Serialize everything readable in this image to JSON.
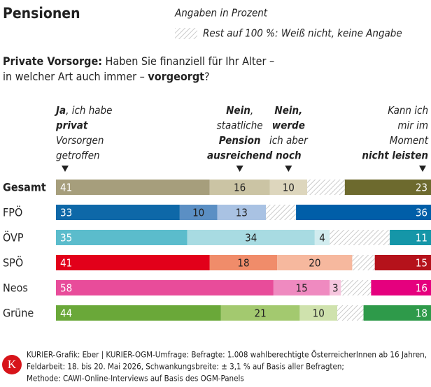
{
  "chart_data": {
    "type": "bar",
    "orientation": "horizontal",
    "stacked": true,
    "title": "Pensionen",
    "note": "Angaben in Prozent",
    "rest_note": "Rest auf 100 %: Weiß nicht, keine Angabe",
    "question_lines": [
      [
        {
          "text": "Private Vorsorge:",
          "bold": true
        },
        {
          "text": " Haben Sie finanziell für Ihr Alter –"
        }
      ],
      [
        {
          "text": "in welcher Art auch immer – "
        },
        {
          "text": "vorgeorgt",
          "bold": true
        },
        {
          "text": "?"
        }
      ]
    ],
    "categories": [
      "Gesamt",
      "FPÖ",
      "ÖVP",
      "SPÖ",
      "Neos",
      "Grüne"
    ],
    "xlim": [
      0,
      100
    ],
    "series": [
      {
        "header_lines": [
          [
            {
              "text": "Ja",
              "bold": true
            },
            {
              "text": ", ich habe"
            }
          ],
          [
            {
              "text": "privat",
              "bold": true
            }
          ],
          [
            {
              "text": "Vorsorgen"
            }
          ],
          [
            {
              "text": "getroffen"
            }
          ]
        ],
        "header_align": "start",
        "label_color": "#ffffff",
        "colors": [
          "#a69e7c",
          "#0e68a8",
          "#5bbccc",
          "#e2001a",
          "#e84c9a",
          "#6aa839"
        ],
        "values": [
          41,
          33,
          35,
          41,
          58,
          44
        ]
      },
      {
        "header_lines": [
          [
            {
              "text": "Nein",
              "bold": true
            },
            {
              "text": ","
            }
          ],
          [
            {
              "text": "staatliche"
            }
          ],
          [
            {
              "text": "Pension",
              "bold": true
            }
          ],
          [
            {
              "text": "ausreichend",
              "bold": true
            }
          ]
        ],
        "header_align": "middle",
        "label_color": "#222222",
        "colors": [
          "#cbc4a4",
          "#5b8fc4",
          "#a8dbe2",
          "#f08c6a",
          "#ef8ac0",
          "#a3c96f"
        ],
        "values": [
          16,
          10,
          34,
          18,
          15,
          21
        ]
      },
      {
        "header_lines": [
          [
            {
              "text": "Nein,",
              "bold": true
            }
          ],
          [
            {
              "text": "werde",
              "bold": true
            }
          ],
          [
            {
              "text": "ich aber"
            }
          ],
          [
            {
              "text": "noch",
              "bold": true
            }
          ]
        ],
        "header_align": "middle",
        "label_color": "#222222",
        "colors": [
          "#ddd6bd",
          "#a9c2e3",
          "#d1ecef",
          "#f6b89e",
          "#f6c6de",
          "#cfe2ad"
        ],
        "values": [
          10,
          13,
          4,
          20,
          3,
          10
        ]
      },
      {
        "header_lines": [
          [
            {
              "text": "Kann ich"
            }
          ],
          [
            {
              "text": "mir im"
            }
          ],
          [
            {
              "text": "Moment"
            }
          ],
          [
            {
              "text": "nicht leisten",
              "bold": true
            }
          ]
        ],
        "header_align": "end",
        "label_color": "#ffffff",
        "align_right": true,
        "colors": [
          "#6d6a2e",
          "#005ea8",
          "#1596a8",
          "#b5121b",
          "#e5007e",
          "#2e9a4a"
        ],
        "values": [
          23,
          36,
          11,
          15,
          16,
          18
        ]
      }
    ],
    "logo": "K",
    "source_lines": [
      "KURIER-Grafik: Eber | KURIER-OGM-Umfrage: Befragte: 1.008 wahlberechtigte ÖsterreicherInnen ab 16 Jahren,",
      "Feldarbeit: 18. bis 20. Mai 2026, Schwankungsbreite: ± 3,1 % auf Basis aller Befragten;",
      "Methode: CAWI-Online-Interviews auf Basis des OGM-Panels"
    ]
  }
}
